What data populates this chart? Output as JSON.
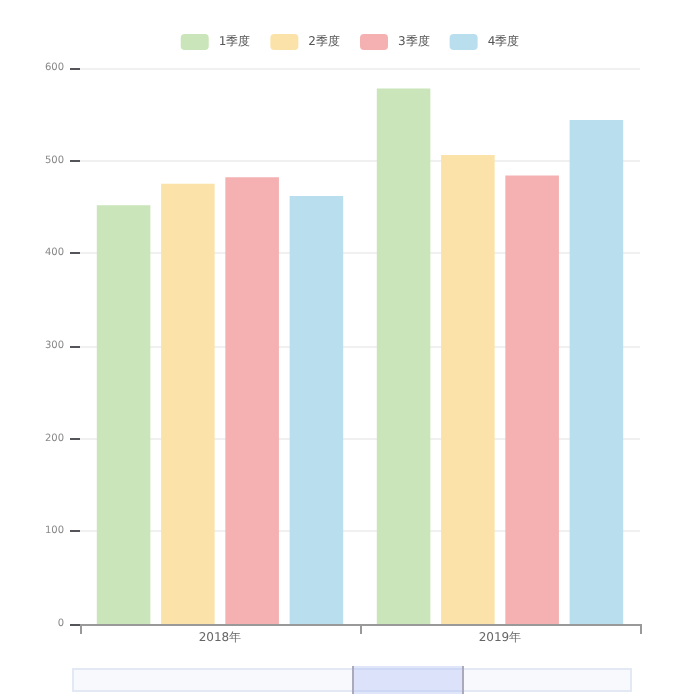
{
  "chart_data": {
    "type": "bar",
    "categories": [
      "2018年",
      "2019年"
    ],
    "series": [
      {
        "name": "1季度",
        "color": "#c9e5b9",
        "values": [
          452,
          578
        ]
      },
      {
        "name": "2季度",
        "color": "#fbe2a9",
        "values": [
          475,
          506
        ]
      },
      {
        "name": "3季度",
        "color": "#f5b0b2",
        "values": [
          482,
          484
        ]
      },
      {
        "name": "4季度",
        "color": "#b9dfee",
        "values": [
          462,
          544
        ]
      }
    ],
    "ylim": [
      0,
      600
    ],
    "yticks": [
      0,
      100,
      200,
      300,
      400,
      500,
      600
    ],
    "grid": "y",
    "legend": "top"
  }
}
